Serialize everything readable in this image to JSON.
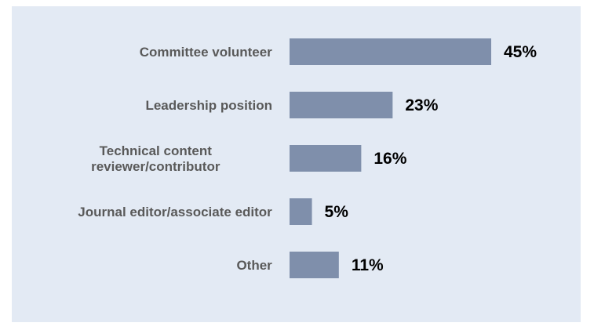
{
  "chart_data": {
    "type": "bar",
    "orientation": "horizontal",
    "categories": [
      [
        "Committee volunteer"
      ],
      [
        "Leadership position"
      ],
      [
        "Technical content",
        "reviewer/contributor"
      ],
      [
        "Journal editor/associate editor"
      ],
      [
        "Other"
      ]
    ],
    "values": [
      45,
      23,
      16,
      5,
      11
    ],
    "value_labels": [
      "45%",
      "23%",
      "16%",
      "5%",
      "11%"
    ],
    "unit": "%",
    "title": "",
    "xlabel": "",
    "ylabel": "",
    "xlim": [
      0,
      45
    ],
    "grid": false,
    "legend": "none",
    "colors": {
      "bar": "#7f8fab",
      "background": "#e3eaf4",
      "category_text": "#595959",
      "value_text": "#000000"
    }
  }
}
